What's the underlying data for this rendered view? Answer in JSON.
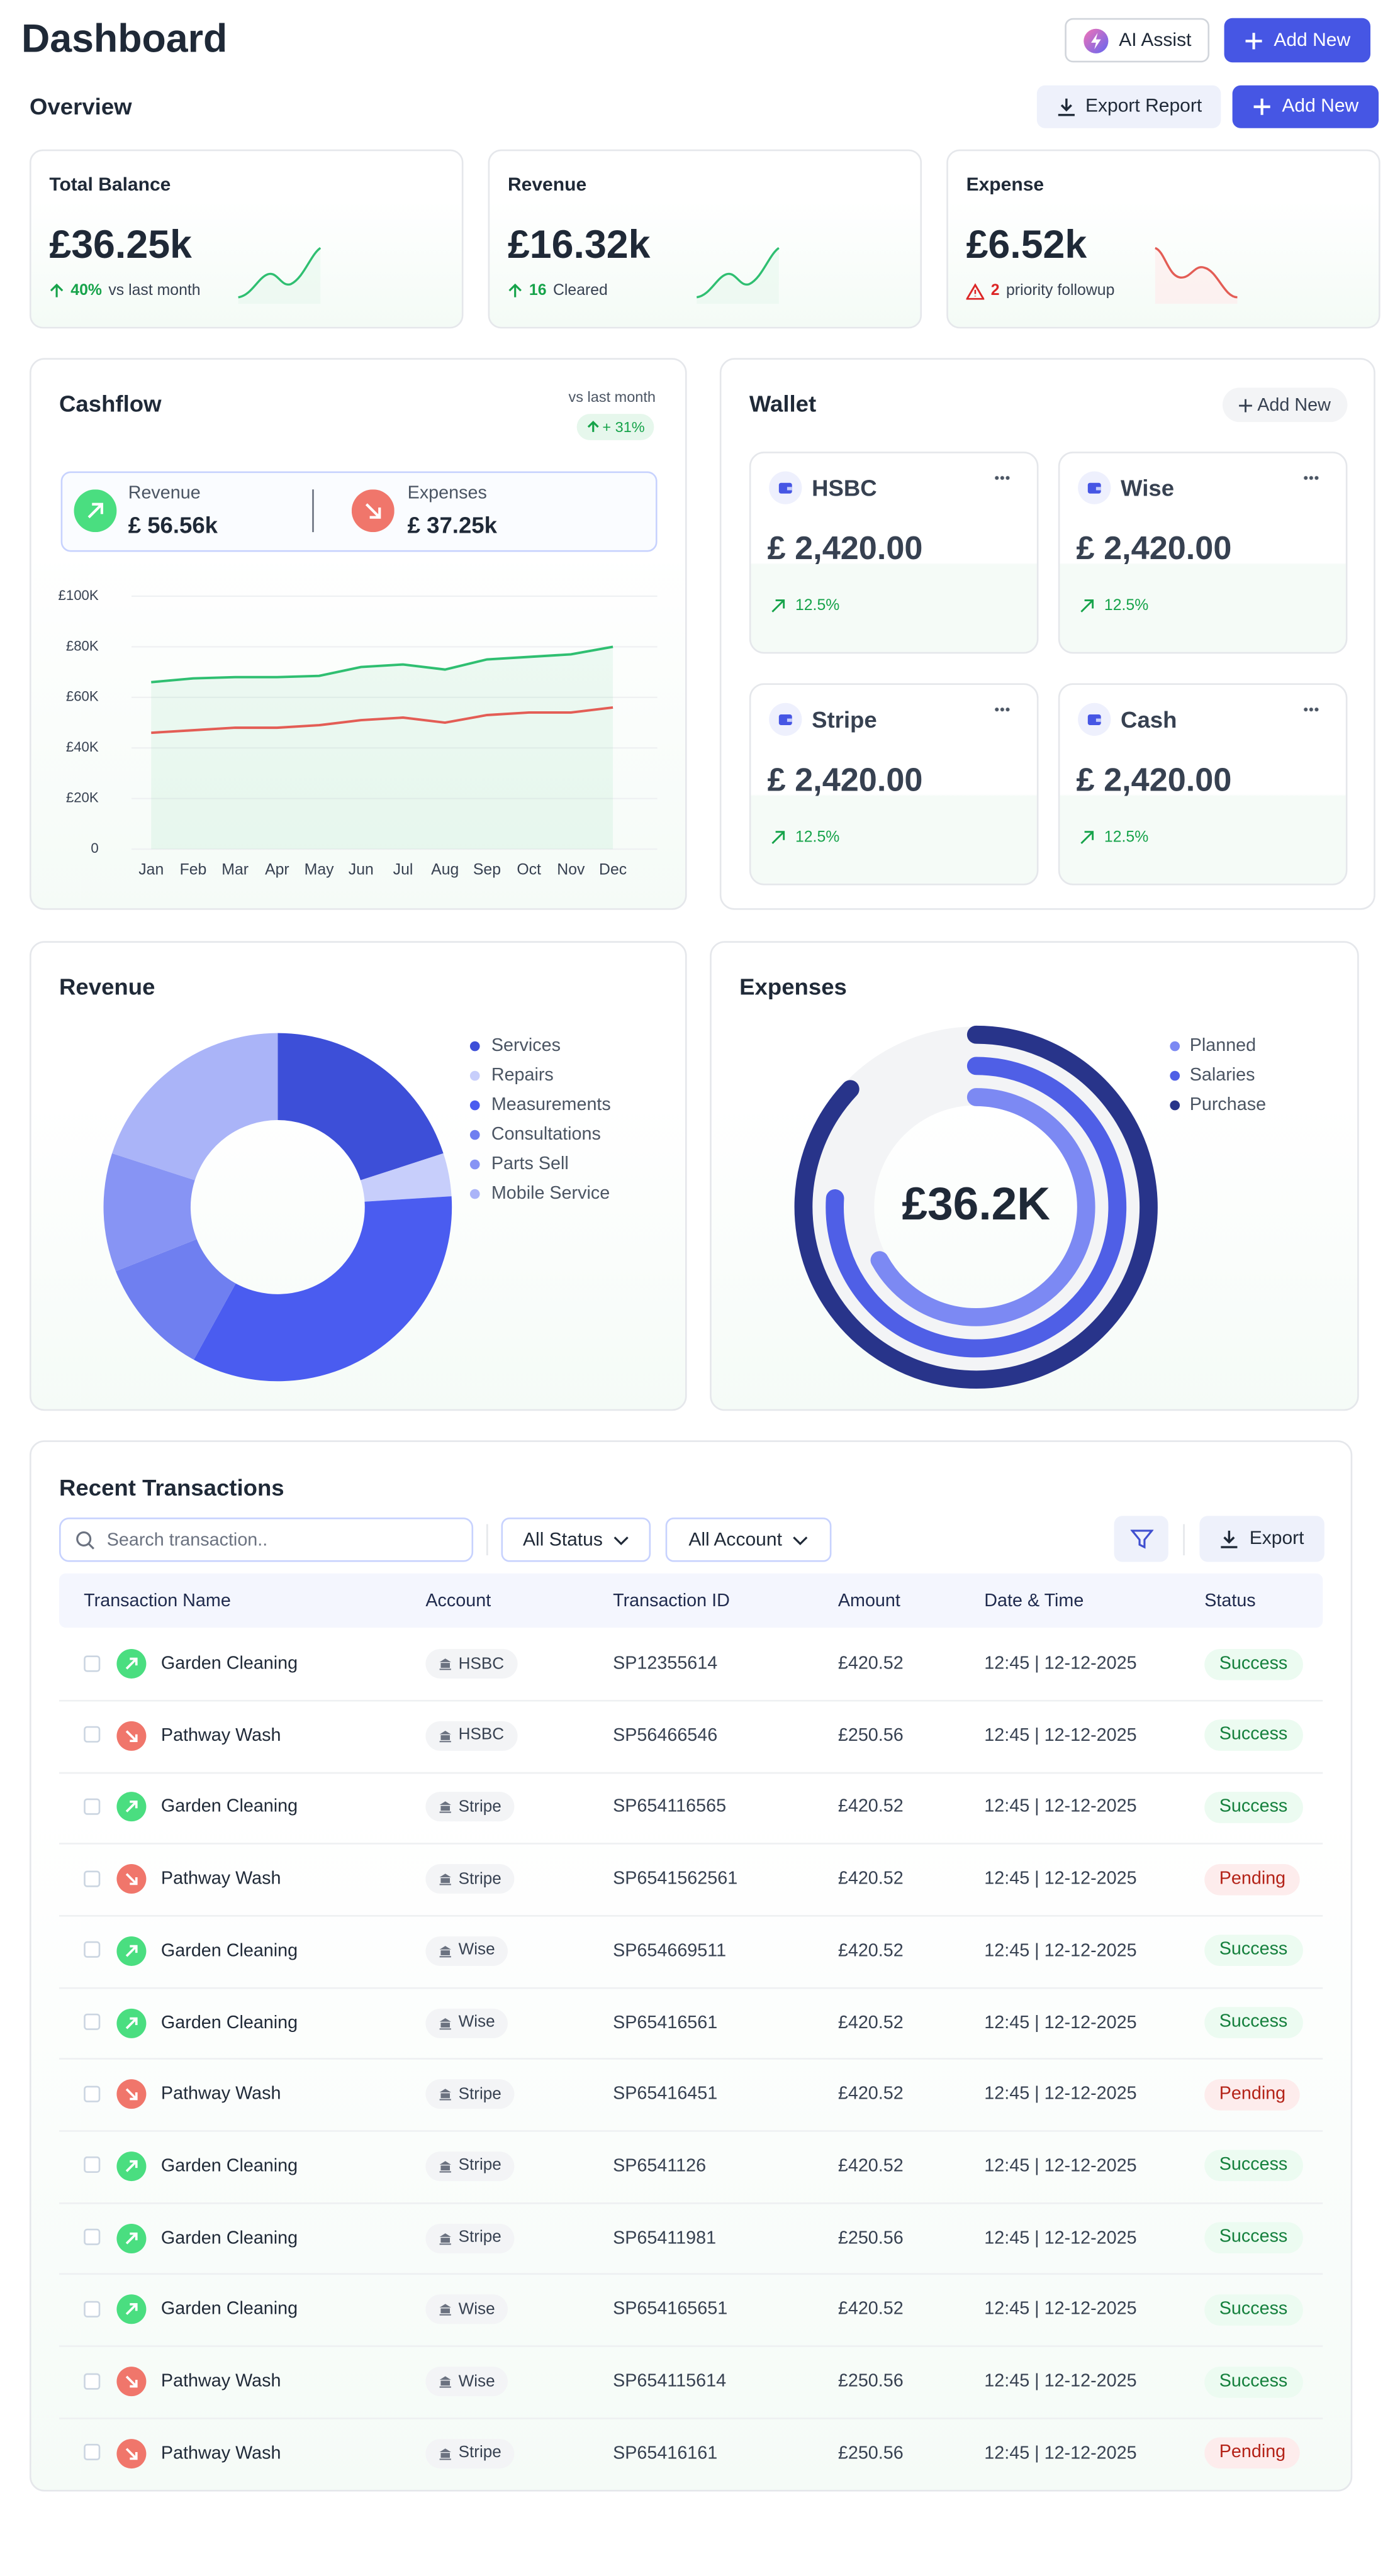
{
  "header": {
    "title": "Dashboard",
    "ai_button": "AI Assist",
    "add_button": "Add New"
  },
  "overview": {
    "title": "Overview",
    "export_button": "Export Report",
    "add_button": "Add New",
    "cards": [
      {
        "label": "Total Balance",
        "value": "£36.25k",
        "change": "40%",
        "note": "vs last month"
      },
      {
        "label": "Revenue",
        "value": "£16.32k",
        "change": "16",
        "note": "Cleared"
      },
      {
        "label": "Expense",
        "value": "£6.52k",
        "change": "2",
        "note": "priority followup"
      }
    ]
  },
  "cashflow": {
    "compare_label": "vs last month",
    "change": "+ 31%",
    "revenue_label": "Revenue",
    "revenue_value": "£ 56.56k",
    "expense_label": "Expenses",
    "expense_value": "£ 37.25k"
  },
  "wallet": {
    "title": "Wallet",
    "add_button": "Add New",
    "accounts": [
      {
        "name": "HSBC",
        "balance": "£ 2,420.00",
        "change": "12.5%"
      },
      {
        "name": "Wise",
        "balance": "£ 2,420.00",
        "change": "12.5%"
      },
      {
        "name": "Stripe",
        "balance": "£ 2,420.00",
        "change": "12.5%"
      },
      {
        "name": "Cash",
        "balance": "£ 2,420.00",
        "change": "12.5%"
      }
    ]
  },
  "chart_data": [
    {
      "type": "line",
      "title": "Cashflow",
      "categories": [
        "Jan",
        "Feb",
        "Mar",
        "Apr",
        "May",
        "Jun",
        "Jul",
        "Aug",
        "Sep",
        "Oct",
        "Nov",
        "Dec"
      ],
      "series": [
        {
          "name": "Revenue",
          "color": "#2fbf71",
          "values": [
            66000,
            67500,
            68000,
            68000,
            68500,
            72000,
            73000,
            71000,
            75000,
            76000,
            77000,
            80000
          ]
        },
        {
          "name": "Expenses",
          "color": "#e35d55",
          "values": [
            46000,
            47000,
            48000,
            48000,
            49000,
            51000,
            52000,
            50000,
            53000,
            54000,
            54000,
            56000
          ]
        }
      ],
      "ylim": [
        0,
        100000
      ],
      "yticks": [
        0,
        {
          "value": 20000,
          "label": "£20K"
        },
        {
          "value": 40000,
          "label": "£40K"
        },
        {
          "value": 60000,
          "label": "£60K"
        },
        {
          "value": 80000,
          "label": "£80K"
        },
        {
          "value": 100000,
          "label": "£100K"
        }
      ],
      "grid": true
    },
    {
      "type": "donut",
      "title": "Revenue",
      "categories": [
        "Services",
        "Repairs",
        "Measurements",
        "Consultations",
        "Parts Sell",
        "Mobile Service"
      ],
      "values": [
        20,
        4,
        34,
        11,
        11,
        20
      ],
      "colors": [
        "#3d4fd8",
        "#c7cefb",
        "#4a5cf0",
        "#6f7ff0",
        "#8794f4",
        "#aab4f8"
      ]
    },
    {
      "type": "radial_bar",
      "title": "Expenses",
      "center_label": "£36.2K",
      "categories": [
        "Planned",
        "Salaries",
        "Purchase"
      ],
      "values": [
        67,
        76,
        87
      ],
      "ylim": [
        0,
        100
      ],
      "colors": [
        "#7c89f3",
        "#4f5fe6",
        "#28348a"
      ]
    }
  ],
  "transactions": {
    "title": "Recent Transactions",
    "search_placeholder": "Search transaction..",
    "status_filter": "All Status",
    "account_filter": "All Account",
    "export_button": "Export",
    "columns": [
      "Transaction Name",
      "Account",
      "Transaction ID",
      "Amount",
      "Date & Time",
      "Status"
    ],
    "rows": [
      [
        "Garden Cleaning",
        "HSBC",
        "SP12355614",
        "£420.52",
        "12:45 | 12-12-2025",
        "Success"
      ],
      [
        "Pathway Wash",
        "HSBC",
        "SP56466546",
        "£250.56",
        "12:45 | 12-12-2025",
        "Success"
      ],
      [
        "Garden Cleaning",
        "Stripe",
        "SP654116565",
        "£420.52",
        "12:45 | 12-12-2025",
        "Success"
      ],
      [
        "Pathway Wash",
        "Stripe",
        "SP6541562561",
        "£420.52",
        "12:45 | 12-12-2025",
        "Pending"
      ],
      [
        "Garden Cleaning",
        "Wise",
        "SP654669511",
        "£420.52",
        "12:45 | 12-12-2025",
        "Success"
      ],
      [
        "Garden Cleaning",
        "Wise",
        "SP65416561",
        "£420.52",
        "12:45 | 12-12-2025",
        "Success"
      ],
      [
        "Pathway Wash",
        "Stripe",
        "SP65416451",
        "£420.52",
        "12:45 | 12-12-2025",
        "Pending"
      ],
      [
        "Garden Cleaning",
        "Stripe",
        "SP6541126",
        "£420.52",
        "12:45 | 12-12-2025",
        "Success"
      ],
      [
        "Garden Cleaning",
        "Stripe",
        "SP65411981",
        "£250.56",
        "12:45 | 12-12-2025",
        "Success"
      ],
      [
        "Garden Cleaning",
        "Wise",
        "SP654165651",
        "£420.52",
        "12:45 | 12-12-2025",
        "Success"
      ],
      [
        "Pathway Wash",
        "Wise",
        "SP654115614",
        "£250.56",
        "12:45 | 12-12-2025",
        "Success"
      ],
      [
        "Pathway Wash",
        "Stripe",
        "SP65416161",
        "£250.56",
        "12:45 | 12-12-2025",
        "Pending"
      ]
    ]
  }
}
